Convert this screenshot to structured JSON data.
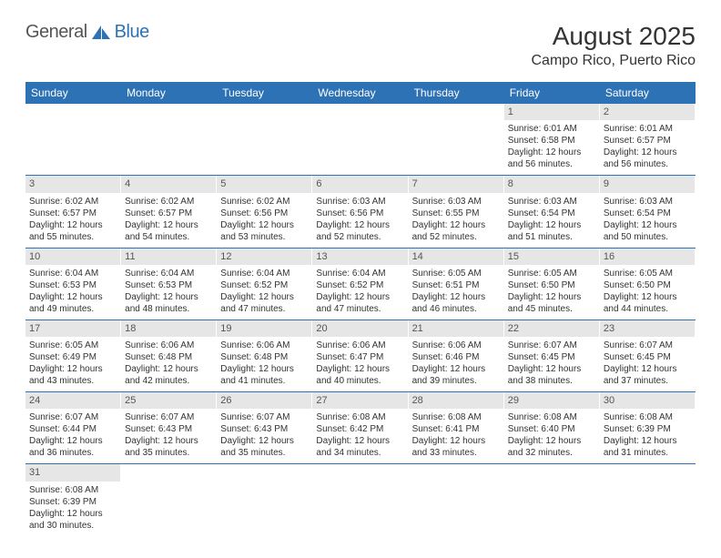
{
  "logo": {
    "text_a": "General",
    "text_b": "Blue"
  },
  "title": "August 2025",
  "location": "Campo Rico, Puerto Rico",
  "colors": {
    "header_bg": "#2e72b6",
    "header_text": "#ffffff",
    "daynum_bg": "#e6e6e6",
    "cell_border": "#2e72b6",
    "text": "#333333"
  },
  "day_headers": [
    "Sunday",
    "Monday",
    "Tuesday",
    "Wednesday",
    "Thursday",
    "Friday",
    "Saturday"
  ],
  "weeks": [
    [
      {
        "n": "",
        "sr": "",
        "ss": "",
        "dl": ""
      },
      {
        "n": "",
        "sr": "",
        "ss": "",
        "dl": ""
      },
      {
        "n": "",
        "sr": "",
        "ss": "",
        "dl": ""
      },
      {
        "n": "",
        "sr": "",
        "ss": "",
        "dl": ""
      },
      {
        "n": "",
        "sr": "",
        "ss": "",
        "dl": ""
      },
      {
        "n": "1",
        "sr": "Sunrise: 6:01 AM",
        "ss": "Sunset: 6:58 PM",
        "dl": "Daylight: 12 hours and 56 minutes."
      },
      {
        "n": "2",
        "sr": "Sunrise: 6:01 AM",
        "ss": "Sunset: 6:57 PM",
        "dl": "Daylight: 12 hours and 56 minutes."
      }
    ],
    [
      {
        "n": "3",
        "sr": "Sunrise: 6:02 AM",
        "ss": "Sunset: 6:57 PM",
        "dl": "Daylight: 12 hours and 55 minutes."
      },
      {
        "n": "4",
        "sr": "Sunrise: 6:02 AM",
        "ss": "Sunset: 6:57 PM",
        "dl": "Daylight: 12 hours and 54 minutes."
      },
      {
        "n": "5",
        "sr": "Sunrise: 6:02 AM",
        "ss": "Sunset: 6:56 PM",
        "dl": "Daylight: 12 hours and 53 minutes."
      },
      {
        "n": "6",
        "sr": "Sunrise: 6:03 AM",
        "ss": "Sunset: 6:56 PM",
        "dl": "Daylight: 12 hours and 52 minutes."
      },
      {
        "n": "7",
        "sr": "Sunrise: 6:03 AM",
        "ss": "Sunset: 6:55 PM",
        "dl": "Daylight: 12 hours and 52 minutes."
      },
      {
        "n": "8",
        "sr": "Sunrise: 6:03 AM",
        "ss": "Sunset: 6:54 PM",
        "dl": "Daylight: 12 hours and 51 minutes."
      },
      {
        "n": "9",
        "sr": "Sunrise: 6:03 AM",
        "ss": "Sunset: 6:54 PM",
        "dl": "Daylight: 12 hours and 50 minutes."
      }
    ],
    [
      {
        "n": "10",
        "sr": "Sunrise: 6:04 AM",
        "ss": "Sunset: 6:53 PM",
        "dl": "Daylight: 12 hours and 49 minutes."
      },
      {
        "n": "11",
        "sr": "Sunrise: 6:04 AM",
        "ss": "Sunset: 6:53 PM",
        "dl": "Daylight: 12 hours and 48 minutes."
      },
      {
        "n": "12",
        "sr": "Sunrise: 6:04 AM",
        "ss": "Sunset: 6:52 PM",
        "dl": "Daylight: 12 hours and 47 minutes."
      },
      {
        "n": "13",
        "sr": "Sunrise: 6:04 AM",
        "ss": "Sunset: 6:52 PM",
        "dl": "Daylight: 12 hours and 47 minutes."
      },
      {
        "n": "14",
        "sr": "Sunrise: 6:05 AM",
        "ss": "Sunset: 6:51 PM",
        "dl": "Daylight: 12 hours and 46 minutes."
      },
      {
        "n": "15",
        "sr": "Sunrise: 6:05 AM",
        "ss": "Sunset: 6:50 PM",
        "dl": "Daylight: 12 hours and 45 minutes."
      },
      {
        "n": "16",
        "sr": "Sunrise: 6:05 AM",
        "ss": "Sunset: 6:50 PM",
        "dl": "Daylight: 12 hours and 44 minutes."
      }
    ],
    [
      {
        "n": "17",
        "sr": "Sunrise: 6:05 AM",
        "ss": "Sunset: 6:49 PM",
        "dl": "Daylight: 12 hours and 43 minutes."
      },
      {
        "n": "18",
        "sr": "Sunrise: 6:06 AM",
        "ss": "Sunset: 6:48 PM",
        "dl": "Daylight: 12 hours and 42 minutes."
      },
      {
        "n": "19",
        "sr": "Sunrise: 6:06 AM",
        "ss": "Sunset: 6:48 PM",
        "dl": "Daylight: 12 hours and 41 minutes."
      },
      {
        "n": "20",
        "sr": "Sunrise: 6:06 AM",
        "ss": "Sunset: 6:47 PM",
        "dl": "Daylight: 12 hours and 40 minutes."
      },
      {
        "n": "21",
        "sr": "Sunrise: 6:06 AM",
        "ss": "Sunset: 6:46 PM",
        "dl": "Daylight: 12 hours and 39 minutes."
      },
      {
        "n": "22",
        "sr": "Sunrise: 6:07 AM",
        "ss": "Sunset: 6:45 PM",
        "dl": "Daylight: 12 hours and 38 minutes."
      },
      {
        "n": "23",
        "sr": "Sunrise: 6:07 AM",
        "ss": "Sunset: 6:45 PM",
        "dl": "Daylight: 12 hours and 37 minutes."
      }
    ],
    [
      {
        "n": "24",
        "sr": "Sunrise: 6:07 AM",
        "ss": "Sunset: 6:44 PM",
        "dl": "Daylight: 12 hours and 36 minutes."
      },
      {
        "n": "25",
        "sr": "Sunrise: 6:07 AM",
        "ss": "Sunset: 6:43 PM",
        "dl": "Daylight: 12 hours and 35 minutes."
      },
      {
        "n": "26",
        "sr": "Sunrise: 6:07 AM",
        "ss": "Sunset: 6:43 PM",
        "dl": "Daylight: 12 hours and 35 minutes."
      },
      {
        "n": "27",
        "sr": "Sunrise: 6:08 AM",
        "ss": "Sunset: 6:42 PM",
        "dl": "Daylight: 12 hours and 34 minutes."
      },
      {
        "n": "28",
        "sr": "Sunrise: 6:08 AM",
        "ss": "Sunset: 6:41 PM",
        "dl": "Daylight: 12 hours and 33 minutes."
      },
      {
        "n": "29",
        "sr": "Sunrise: 6:08 AM",
        "ss": "Sunset: 6:40 PM",
        "dl": "Daylight: 12 hours and 32 minutes."
      },
      {
        "n": "30",
        "sr": "Sunrise: 6:08 AM",
        "ss": "Sunset: 6:39 PM",
        "dl": "Daylight: 12 hours and 31 minutes."
      }
    ],
    [
      {
        "n": "31",
        "sr": "Sunrise: 6:08 AM",
        "ss": "Sunset: 6:39 PM",
        "dl": "Daylight: 12 hours and 30 minutes."
      },
      {
        "n": "",
        "sr": "",
        "ss": "",
        "dl": ""
      },
      {
        "n": "",
        "sr": "",
        "ss": "",
        "dl": ""
      },
      {
        "n": "",
        "sr": "",
        "ss": "",
        "dl": ""
      },
      {
        "n": "",
        "sr": "",
        "ss": "",
        "dl": ""
      },
      {
        "n": "",
        "sr": "",
        "ss": "",
        "dl": ""
      },
      {
        "n": "",
        "sr": "",
        "ss": "",
        "dl": ""
      }
    ]
  ]
}
